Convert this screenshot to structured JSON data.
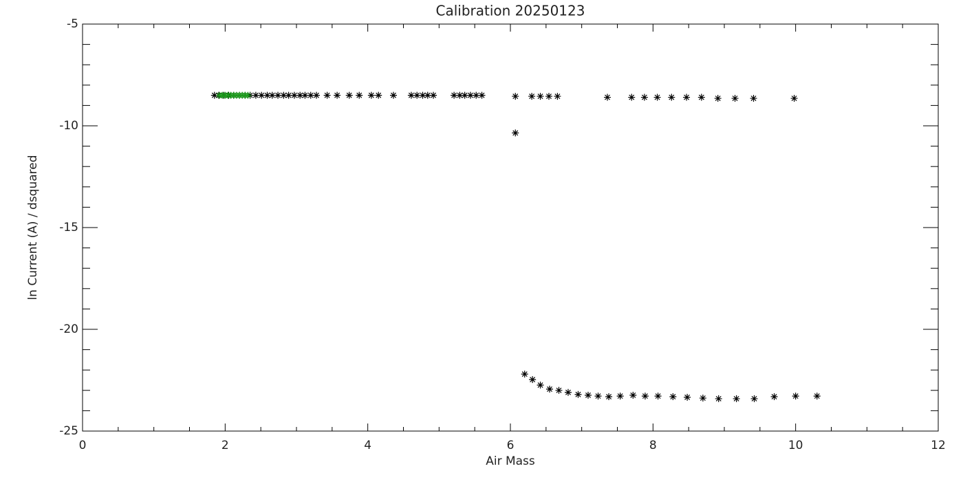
{
  "chart_data": {
    "type": "scatter",
    "title": "Calibration 20250123",
    "x_label": "Air Mass",
    "y_label": "ln Current (A) / dsquared",
    "xlim": [
      0,
      12
    ],
    "ylim": [
      -25,
      -5
    ],
    "xticks": [
      0,
      2,
      4,
      6,
      8,
      10,
      12
    ],
    "yticks": [
      -25,
      -20,
      -15,
      -10,
      -5
    ],
    "series": [
      {
        "color": "#000000",
        "x": [
          1.85,
          1.91,
          1.98,
          2.05,
          2.12,
          2.2,
          2.28,
          2.35,
          2.43,
          2.51,
          2.59,
          2.66,
          2.74,
          2.82,
          2.89,
          2.97,
          3.05,
          3.12,
          3.2,
          3.28,
          3.43,
          3.57,
          3.74,
          3.88,
          4.05,
          4.15,
          4.36,
          4.61,
          4.69,
          4.77,
          4.84,
          4.92,
          5.21,
          5.29,
          5.36,
          5.44,
          5.52,
          5.6,
          6.07,
          6.3,
          6.42,
          6.54,
          6.66,
          7.36,
          7.7,
          7.88,
          8.06,
          8.26,
          8.47,
          8.68,
          8.91,
          9.15,
          9.41,
          9.98,
          6.07
        ],
        "values": [
          -8.5,
          -8.5,
          -8.5,
          -8.5,
          -8.5,
          -8.5,
          -8.5,
          -8.5,
          -8.5,
          -8.5,
          -8.5,
          -8.5,
          -8.5,
          -8.5,
          -8.5,
          -8.5,
          -8.5,
          -8.5,
          -8.5,
          -8.5,
          -8.5,
          -8.5,
          -8.5,
          -8.5,
          -8.5,
          -8.5,
          -8.5,
          -8.5,
          -8.5,
          -8.5,
          -8.5,
          -8.5,
          -8.5,
          -8.5,
          -8.5,
          -8.5,
          -8.5,
          -8.5,
          -8.55,
          -8.55,
          -8.55,
          -8.55,
          -8.55,
          -8.6,
          -8.6,
          -8.6,
          -8.6,
          -8.6,
          -8.6,
          -8.6,
          -8.65,
          -8.65,
          -8.65,
          -8.65,
          -10.35
        ]
      },
      {
        "color": "#000000",
        "x": [
          6.2,
          6.31,
          6.42,
          6.55,
          6.68,
          6.81,
          6.95,
          7.09,
          7.23,
          7.38,
          7.54,
          7.72,
          7.89,
          8.07,
          8.28,
          8.48,
          8.7,
          8.92,
          9.17,
          9.42,
          9.7,
          10.0,
          10.3
        ],
        "values": [
          -22.2,
          -22.47,
          -22.74,
          -22.94,
          -23.0,
          -23.1,
          -23.2,
          -23.24,
          -23.28,
          -23.31,
          -23.28,
          -23.24,
          -23.28,
          -23.28,
          -23.31,
          -23.34,
          -23.38,
          -23.41,
          -23.41,
          -23.41,
          -23.31,
          -23.28,
          -23.28
        ]
      },
      {
        "color": "#1a9a1a",
        "x": [
          1.92,
          1.96,
          2.0,
          2.04,
          2.08,
          2.12,
          2.16,
          2.2,
          2.24,
          2.28,
          2.32
        ],
        "values": [
          -8.5,
          -8.5,
          -8.5,
          -8.5,
          -8.5,
          -8.5,
          -8.5,
          -8.5,
          -8.5,
          -8.5,
          -8.5
        ]
      }
    ]
  }
}
